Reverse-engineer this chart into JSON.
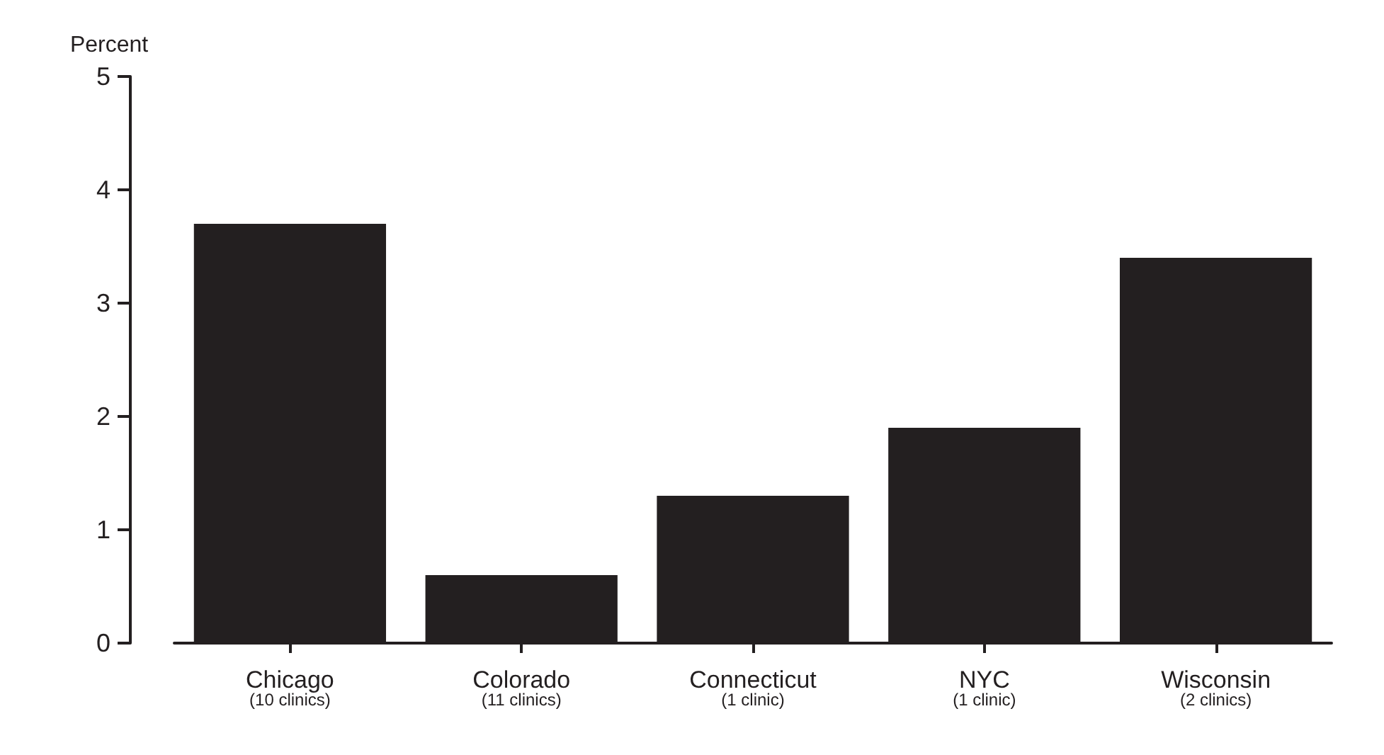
{
  "chart_data": {
    "type": "bar",
    "ylabel": "Percent",
    "categories": [
      "Chicago\n(10 clinics)",
      "Colorado\n(11 clinics)",
      "Connecticut\n(1 clinic)",
      "NYC\n(1 clinic)",
      "Wisconsin\n(2 clinics)"
    ],
    "values": [
      3.7,
      0.6,
      1.3,
      1.9,
      3.4
    ],
    "color": "#231f20",
    "ylim": [
      0,
      5
    ],
    "yticks": [
      0,
      1,
      2,
      3,
      4,
      5
    ],
    "grid": false
  }
}
